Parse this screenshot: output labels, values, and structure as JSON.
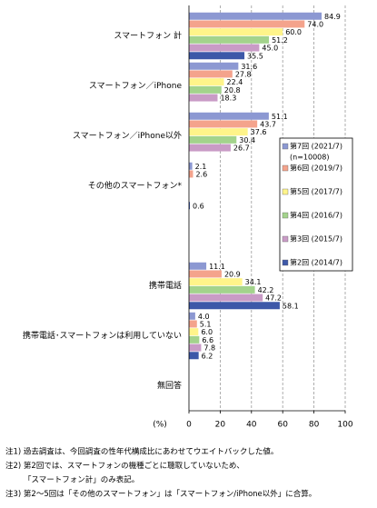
{
  "chart_data": {
    "type": "hbar",
    "categories": [
      "スマートフォン 計",
      "スマートフォン／iPhone",
      "スマートフォン／iPhone以外",
      "その他のスマートフォン*",
      null,
      "携帯電話",
      "携帯電話･スマートフォンは利用していない",
      "無回答"
    ],
    "series": [
      {
        "name": "第7回 (2021/7)",
        "note": "(n=10008)",
        "color": "#8c98d2",
        "values": [
          84.9,
          31.6,
          51.1,
          2.1,
          null,
          11.1,
          4.0,
          null
        ],
        "value_labels": [
          "84.9",
          "31.6",
          "51.1",
          "2.1",
          null,
          "11.1",
          "4.0",
          null
        ]
      },
      {
        "name": "第6回 (2019/7)",
        "color": "#f4a38c",
        "values": [
          74.0,
          27.8,
          43.7,
          2.6,
          null,
          20.9,
          5.1,
          null
        ],
        "value_labels": [
          "74.0",
          "27.8",
          "43.7",
          "2.6",
          null,
          "20.9",
          "5.1",
          null
        ]
      },
      {
        "name": "第5回 (2017/7)",
        "color": "#fff48a",
        "values": [
          60.0,
          22.4,
          37.6,
          null,
          null,
          34.1,
          6.0,
          null
        ],
        "value_labels": [
          "60.0",
          "22.4",
          "37.6",
          null,
          null,
          "34.1",
          "6.0",
          null
        ]
      },
      {
        "name": "第4回 (2016/7)",
        "color": "#a3d38c",
        "values": [
          51.2,
          20.8,
          30.4,
          null,
          null,
          42.2,
          6.6,
          null
        ],
        "value_labels": [
          "51.2",
          "20.8",
          "30.4",
          null,
          null,
          "42.2",
          "6.6",
          null
        ]
      },
      {
        "name": "第3回 (2015/7)",
        "color": "#c99bc6",
        "values": [
          45.0,
          18.3,
          26.7,
          null,
          null,
          47.2,
          7.8,
          null
        ],
        "value_labels": [
          "45.0",
          "18.3",
          "26.7",
          null,
          null,
          "47.2",
          "7.8",
          null
        ]
      },
      {
        "name": "第2回 (2014/7)",
        "color": "#3d58a8",
        "values": [
          35.5,
          null,
          null,
          0.6,
          null,
          58.1,
          6.2,
          null
        ],
        "value_labels": [
          "35.5",
          null,
          null,
          "0.6",
          null,
          "58.1",
          "6.2",
          null
        ]
      }
    ],
    "xlim": [
      0,
      100
    ],
    "xticks": [
      0,
      20,
      40,
      60,
      80,
      100
    ],
    "xlabel": "(%)",
    "grid": true,
    "notes": [
      "注1) 過去調査は、今回調査の性年代構成比にあわせてウエイトバックした値。",
      "注2) 第2回では、スマートフォンの機種ごとに聴取していないため、",
      "「スマートフォン計」のみ表記。",
      "注3) 第2～5回は「その他のスマートフォン」は「スマートフォン/iPhone以外」に合算。"
    ]
  }
}
